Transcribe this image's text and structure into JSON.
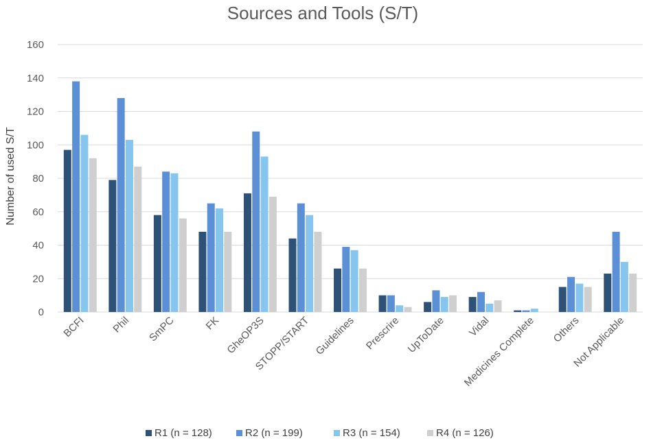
{
  "chart_data": {
    "type": "bar",
    "title": "Sources and Tools (S/T)",
    "xlabel": "",
    "ylabel": "Number of used S/T",
    "ylim": [
      0,
      160
    ],
    "yticks": [
      0,
      20,
      40,
      60,
      80,
      100,
      120,
      140,
      160
    ],
    "grid": true,
    "legend_position": "bottom",
    "categories": [
      "BCFI",
      "Phil",
      "SmPC",
      "FK",
      "GheOP3S",
      "STOPP/START",
      "Guidelines",
      "Prescrire",
      "UpToDate",
      "Vidal",
      "Medicines Complete",
      "Others",
      "Not Applicable"
    ],
    "series": [
      {
        "name": "R1 (n = 128)",
        "color": "#2e5277",
        "values": [
          97,
          79,
          58,
          48,
          71,
          44,
          26,
          10,
          6,
          9,
          1,
          15,
          23
        ]
      },
      {
        "name": "R2 (n = 199)",
        "color": "#5b8fd6",
        "values": [
          138,
          128,
          84,
          65,
          108,
          65,
          39,
          10,
          13,
          12,
          1,
          21,
          48
        ]
      },
      {
        "name": "R3 (n = 154)",
        "color": "#86c6ee",
        "values": [
          106,
          103,
          83,
          62,
          93,
          58,
          37,
          4,
          9,
          5,
          2,
          17,
          30
        ]
      },
      {
        "name": "R4 (n = 126)",
        "color": "#cfcfcf",
        "values": [
          92,
          87,
          56,
          48,
          69,
          48,
          26,
          3,
          10,
          7,
          0,
          15,
          23
        ]
      }
    ]
  }
}
